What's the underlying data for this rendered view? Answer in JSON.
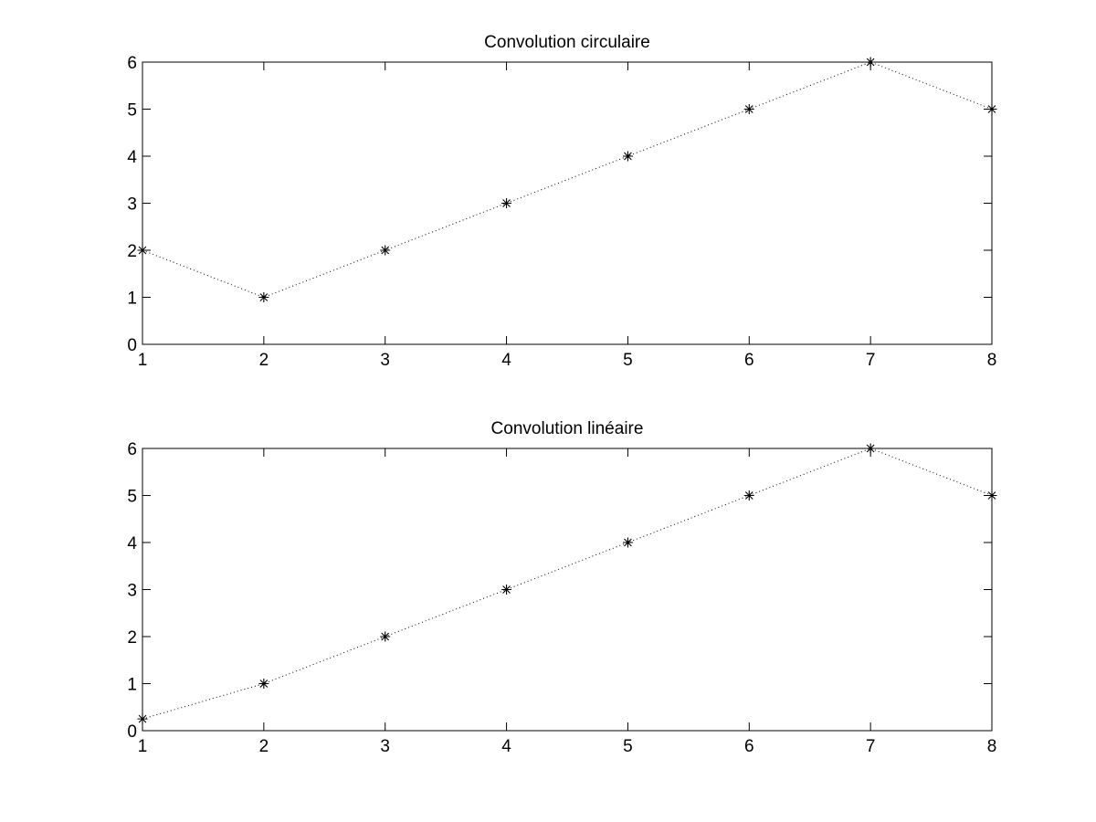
{
  "chart_data": [
    {
      "type": "line",
      "title": "Convolution circulaire",
      "xlabel": "",
      "ylabel": "",
      "x": [
        1,
        2,
        3,
        4,
        5,
        6,
        7,
        8
      ],
      "series": [
        {
          "values": [
            2,
            1,
            2,
            3,
            4,
            5,
            6,
            5
          ],
          "line_style": "dotted",
          "marker": "asterisk",
          "color": "#000000"
        }
      ],
      "xlim": [
        1,
        8
      ],
      "ylim": [
        0,
        6
      ],
      "xticks": [
        1,
        2,
        3,
        4,
        5,
        6,
        7,
        8
      ],
      "yticks": [
        0,
        1,
        2,
        3,
        4,
        5,
        6
      ],
      "grid": false,
      "legend": "none"
    },
    {
      "type": "line",
      "title": "Convolution linéaire",
      "xlabel": "",
      "ylabel": "",
      "x": [
        1,
        2,
        3,
        4,
        5,
        6,
        7,
        8
      ],
      "series": [
        {
          "values": [
            0.25,
            1,
            2,
            3,
            4,
            5,
            6,
            5
          ],
          "line_style": "dotted",
          "marker": "asterisk",
          "color": "#000000"
        }
      ],
      "xlim": [
        1,
        8
      ],
      "ylim": [
        0,
        6
      ],
      "xticks": [
        1,
        2,
        3,
        4,
        5,
        6,
        7,
        8
      ],
      "yticks": [
        0,
        1,
        2,
        3,
        4,
        5,
        6
      ],
      "grid": false,
      "legend": "none"
    }
  ]
}
